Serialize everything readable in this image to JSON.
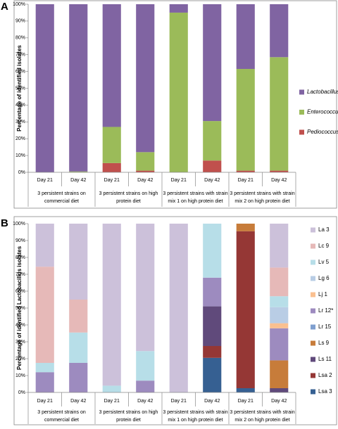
{
  "chart_data": [
    {
      "type": "bar",
      "stacked": true,
      "panel_label": "A",
      "ylabel": "Percentage of identified isolates",
      "categories": [
        "Day 21",
        "Day 42",
        "Day 21",
        "Day 42",
        "Day 21",
        "Day 42",
        "Day 21",
        "Day 42"
      ],
      "groups": [
        "3 persistent strains on commercial diet",
        "3 persistent strains on high protein diet",
        "3 persistent strains with strain mix 1 on high protein diet",
        "3 persistent strains with strain mix 2 on high protein diet"
      ],
      "series": [
        {
          "name": "Lactobacillus",
          "color": "#8064a2",
          "values": [
            100,
            99.5,
            73,
            88,
            5,
            69.5,
            38.5,
            31.5
          ]
        },
        {
          "name": "Enterococcus",
          "color": "#9bbb59",
          "values": [
            0,
            0.5,
            21.5,
            11,
            95,
            23.5,
            60.5,
            67.5
          ]
        },
        {
          "name": "Pediococcus",
          "color": "#c0504d",
          "values": [
            0,
            0,
            5.5,
            1,
            0,
            7,
            1,
            1
          ]
        }
      ],
      "ylim": [
        0,
        100
      ],
      "yticks": [
        {
          "value": 0,
          "label": "0%"
        },
        {
          "value": 10,
          "label": "10%"
        },
        {
          "value": 20,
          "label": "20%"
        },
        {
          "value": 30,
          "label": "30%"
        },
        {
          "value": 40,
          "label": "40%"
        },
        {
          "value": 50,
          "label": "50%"
        },
        {
          "value": 60,
          "label": "60%"
        },
        {
          "value": 70,
          "label": "70%"
        },
        {
          "value": 80,
          "label": "80%"
        },
        {
          "value": 90,
          "label": "90%"
        },
        {
          "value": 100,
          "label": "100%"
        }
      ],
      "grid": false,
      "legend": "right",
      "legend_italic": true
    },
    {
      "type": "bar",
      "stacked": true,
      "panel_label": "B",
      "ylabel": "Percentage of identified Lactobacillus isolates",
      "categories": [
        "Day 21",
        "Day 42",
        "Day 21",
        "Day 42",
        "Day 21",
        "Day 42",
        "Day 21",
        "Day 42"
      ],
      "groups": [
        "3 persistent strains on commercial diet",
        "3 persistent strains on high protein diet",
        "3 persistent strains with strain mix 1 on high protein diet",
        "3 persistent strains with strain mix 2 on high protein diet"
      ],
      "series": [
        {
          "name": "La 3",
          "color": "#ccc1da",
          "values": [
            25.5,
            45,
            96,
            75.5,
            100,
            0,
            0,
            26
          ]
        },
        {
          "name": "Lc 9",
          "color": "#e6b9b8",
          "values": [
            57,
            19.5,
            0,
            0,
            0,
            0,
            0,
            17
          ]
        },
        {
          "name": "Lv 5",
          "color": "#b7dee8",
          "values": [
            5.5,
            18,
            4,
            17.5,
            0,
            32,
            0,
            6.5
          ]
        },
        {
          "name": "Lg 6",
          "color": "#b9cde5",
          "values": [
            0,
            0,
            0,
            0,
            0,
            0,
            0,
            9.5
          ]
        },
        {
          "name": "Lj 1",
          "color": "#fac090",
          "values": [
            0,
            0,
            0,
            0,
            0,
            0,
            0,
            3
          ]
        },
        {
          "name": "Lr 12*",
          "color": "#9d8bbf",
          "values": [
            12,
            17.5,
            0,
            7,
            0,
            17,
            0,
            19
          ]
        },
        {
          "name": "Lr 15",
          "color": "#7f9fcf",
          "values": [
            0,
            0,
            0,
            0,
            0,
            0,
            0,
            0
          ]
        },
        {
          "name": "Ls 9",
          "color": "#c77c3a",
          "values": [
            0,
            0,
            0,
            0,
            0,
            0,
            4.5,
            16.5
          ]
        },
        {
          "name": "Ls 11",
          "color": "#604a7b",
          "values": [
            0,
            0,
            0,
            0,
            0,
            23.5,
            0,
            2.5
          ]
        },
        {
          "name": "Lsa 2",
          "color": "#953735",
          "values": [
            0,
            0,
            0,
            0,
            0,
            7,
            93,
            0
          ]
        },
        {
          "name": "Lsa 3",
          "color": "#366092",
          "values": [
            0,
            0,
            0,
            0,
            0,
            20.5,
            2.5,
            0
          ]
        }
      ],
      "ylim": [
        0,
        100
      ],
      "yticks": [
        {
          "value": 0,
          "label": "0%"
        },
        {
          "value": 10,
          "label": "10%"
        },
        {
          "value": 20,
          "label": "20%"
        },
        {
          "value": 30,
          "label": "30%"
        },
        {
          "value": 40,
          "label": "40%"
        },
        {
          "value": 50,
          "label": "50%"
        },
        {
          "value": 60,
          "label": "60%"
        },
        {
          "value": 70,
          "label": "70%"
        },
        {
          "value": 80,
          "label": "80%"
        },
        {
          "value": 90,
          "label": "90%"
        },
        {
          "value": 100,
          "label": "100%"
        }
      ],
      "grid": false,
      "legend": "right",
      "legend_italic": false
    }
  ]
}
